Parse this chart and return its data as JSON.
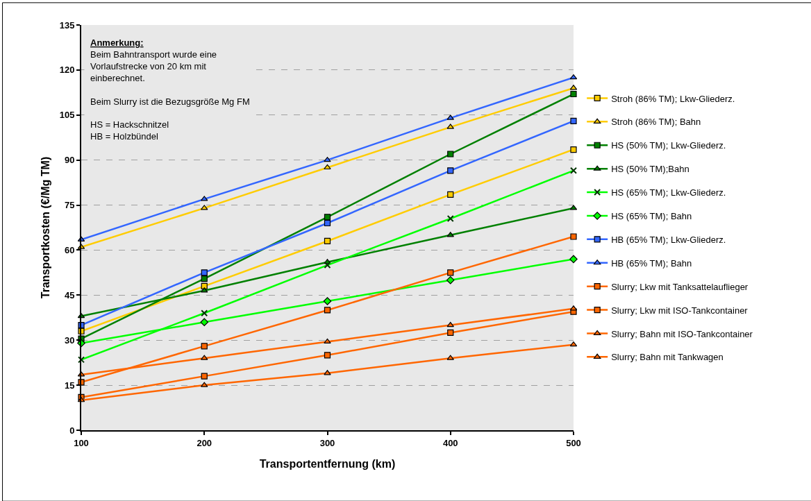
{
  "chart_data": {
    "type": "line",
    "xlabel": "Transportentfernung (km)",
    "ylabel": "Transportkosten (€/Mg TM)",
    "x": [
      100,
      200,
      300,
      400,
      500
    ],
    "xlim": [
      100,
      500
    ],
    "xticks": [
      100,
      200,
      300,
      400,
      500
    ],
    "ylim": [
      0,
      135
    ],
    "yticks": [
      0,
      15,
      30,
      45,
      60,
      75,
      90,
      105,
      120,
      135
    ],
    "grid": "y",
    "legend": "right",
    "annotations": [
      "Anmerkung:\nBeim Bahntransport wurde eine\nVorlaufstrecke von 20 km mit\neinberechnet.\n\nBeim Slurry ist die Bezugsgröße Mg FM\n\nHS = Hackschnitzel\nHB = Holzbündel"
    ],
    "series": [
      {
        "name": "Stroh (86% TM); Lkw-Gliederz.",
        "color": "#ffcc00",
        "marker": "square",
        "values": [
          33,
          48,
          63,
          78.5,
          93.5
        ]
      },
      {
        "name": "Stroh (86% TM); Bahn",
        "color": "#ffcc00",
        "marker": "triangle",
        "values": [
          61,
          74,
          87.5,
          101,
          114
        ]
      },
      {
        "name": "HS (50% TM); Lkw-Gliederz.",
        "color": "#008000",
        "marker": "square",
        "values": [
          30.5,
          50.5,
          71,
          92,
          112
        ]
      },
      {
        "name": "HS (50% TM);Bahn",
        "color": "#008000",
        "marker": "triangle",
        "values": [
          38,
          46.5,
          56,
          65,
          74
        ]
      },
      {
        "name": "HS (65% TM); Lkw-Gliederz.",
        "color": "#00ff00",
        "marker": "cross",
        "values": [
          23.5,
          39,
          55,
          70.5,
          86.5
        ]
      },
      {
        "name": "HS (65% TM); Bahn",
        "color": "#00ff00",
        "marker": "diamond",
        "values": [
          29,
          36,
          43,
          50,
          57
        ]
      },
      {
        "name": "HB (65% TM); Lkw-Gliederz.",
        "color": "#3366ff",
        "marker": "square",
        "values": [
          35,
          52.5,
          69,
          86.5,
          103
        ]
      },
      {
        "name": "HB (65% TM); Bahn",
        "color": "#3366ff",
        "marker": "triangle",
        "values": [
          63.5,
          77,
          90,
          104,
          117.5
        ]
      },
      {
        "name": "Slurry; Lkw mit Tanksattelauflieger",
        "color": "#ff6600",
        "marker": "square",
        "values": [
          11,
          18,
          25,
          32.5,
          39.5
        ]
      },
      {
        "name": "Slurry; Lkw mit ISO-Tankcontainer",
        "color": "#ff6600",
        "marker": "square",
        "values": [
          16,
          28,
          40,
          52.5,
          64.5
        ]
      },
      {
        "name": "Slurry; Bahn mit ISO-Tankcontainer",
        "color": "#ff6600",
        "marker": "triangle",
        "values": [
          18.5,
          24,
          29.5,
          35,
          40.5
        ]
      },
      {
        "name": "Slurry; Bahn mit Tankwagen",
        "color": "#ff6600",
        "marker": "triangle",
        "values": [
          10,
          15,
          19,
          24,
          28.5
        ]
      }
    ]
  }
}
